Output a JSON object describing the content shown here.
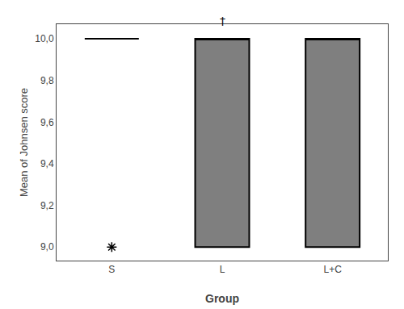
{
  "chart_data": {
    "type": "box",
    "categories": [
      "S",
      "L",
      "L+C"
    ],
    "q1": [
      10.0,
      9.0,
      9.0
    ],
    "median": [
      10.0,
      10.0,
      10.0
    ],
    "q3": [
      10.0,
      10.0,
      10.0
    ],
    "outliers": [
      [
        9.0
      ],
      [],
      []
    ],
    "color": "#000000",
    "xlabel": "Group",
    "ylabel": "Mean of Johnsen score",
    "ylim": [
      8.935,
      10.07
    ],
    "yticks": [
      {
        "value": 9.0,
        "label": "9,0"
      },
      {
        "value": 9.2,
        "label": "9,2"
      },
      {
        "value": 9.4,
        "label": "9,4"
      },
      {
        "value": 9.6,
        "label": "9,6"
      },
      {
        "value": 9.8,
        "label": "9,8"
      },
      {
        "value": 10.0,
        "label": "10,0"
      }
    ],
    "annotations": [
      {
        "text": "†",
        "category": "L",
        "y": 10.045
      }
    ],
    "grid": false
  }
}
